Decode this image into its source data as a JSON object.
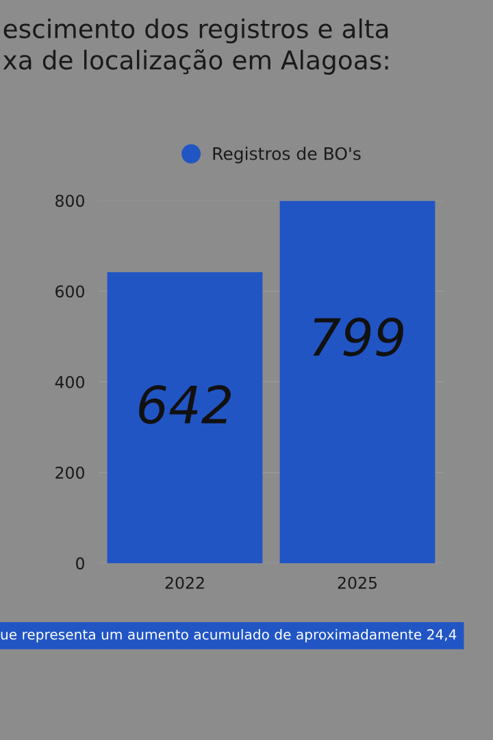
{
  "chart_data": {
    "type": "bar",
    "title": "escimento dos registros e alta\nxa de localização em Alagoas:",
    "categories": [
      "2022",
      "2025"
    ],
    "series": [
      {
        "name": "Registros de BO's",
        "color": "#2155c4",
        "values": [
          642,
          799
        ]
      }
    ],
    "ylim": [
      0,
      800
    ],
    "yticks": [
      0,
      200,
      400,
      600,
      800
    ],
    "grid": "y",
    "legend": "top",
    "data_labels": true,
    "annotations": [
      "ue representa um aumento acumulado de aproximadamente 24,4"
    ]
  }
}
